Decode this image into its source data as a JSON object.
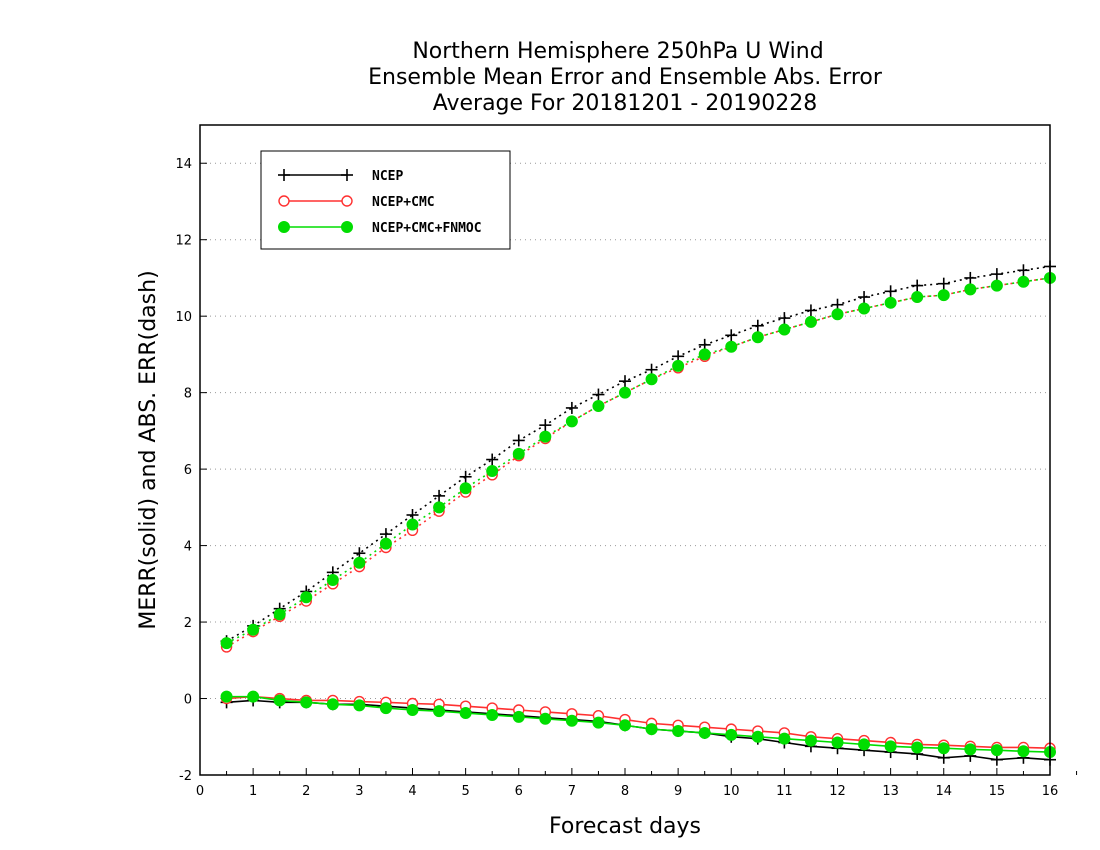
{
  "chart_data": {
    "type": "line",
    "title": [
      "Northern Hemisphere 250hPa U Wind",
      "Ensemble Mean Error and Ensemble Abs. Error",
      "Average For 20181201 - 20190228"
    ],
    "xlabel": "Forecast days",
    "ylabel": "MERR(solid) and ABS. ERR(dash)",
    "xlim": [
      0,
      16
    ],
    "ylim": [
      -2,
      15
    ],
    "x_ticks": [
      "0",
      "1",
      "2",
      "3",
      "4",
      "5",
      "6",
      "7",
      "8",
      "9",
      "10",
      "11",
      "12",
      "13",
      "14",
      "15",
      "16"
    ],
    "y_ticks": [
      "-2",
      "0",
      "2",
      "4",
      "6",
      "8",
      "10",
      "12",
      "14"
    ],
    "grid": "dotted horizontal",
    "legend_position": "top-left",
    "x": [
      0.5,
      1,
      1.5,
      2,
      2.5,
      3,
      3.5,
      4,
      4.5,
      5,
      5.5,
      6,
      6.5,
      7,
      7.5,
      8,
      8.5,
      9,
      9.5,
      10,
      10.5,
      11,
      11.5,
      12,
      12.5,
      13,
      13.5,
      14,
      14.5,
      15,
      15.5,
      16
    ],
    "series": [
      {
        "name": "NCEP",
        "color": "#000000",
        "marker": "plus",
        "abs_err": [
          1.5,
          1.9,
          2.35,
          2.8,
          3.3,
          3.8,
          4.3,
          4.8,
          5.3,
          5.8,
          6.25,
          6.75,
          7.15,
          7.6,
          7.95,
          8.3,
          8.6,
          8.95,
          9.25,
          9.5,
          9.75,
          9.95,
          10.15,
          10.3,
          10.5,
          10.65,
          10.8,
          10.85,
          11.0,
          11.1,
          11.2,
          11.3
        ],
        "mean_err": [
          -0.1,
          -0.05,
          -0.1,
          -0.1,
          -0.15,
          -0.15,
          -0.2,
          -0.25,
          -0.3,
          -0.35,
          -0.4,
          -0.45,
          -0.5,
          -0.55,
          -0.6,
          -0.7,
          -0.8,
          -0.85,
          -0.9,
          -1.0,
          -1.05,
          -1.15,
          -1.25,
          -1.3,
          -1.35,
          -1.4,
          -1.45,
          -1.55,
          -1.5,
          -1.6,
          -1.55,
          -1.6
        ]
      },
      {
        "name": "NCEP+CMC",
        "color": "#ff3030",
        "marker": "open-circle",
        "abs_err": [
          1.35,
          1.75,
          2.15,
          2.55,
          3.0,
          3.45,
          3.95,
          4.4,
          4.9,
          5.4,
          5.85,
          6.35,
          6.8,
          7.25,
          7.65,
          8.0,
          8.35,
          8.65,
          8.95,
          9.2,
          9.45,
          9.65,
          9.85,
          10.05,
          10.2,
          10.35,
          10.5,
          10.55,
          10.7,
          10.8,
          10.9,
          11.0
        ],
        "mean_err": [
          0.0,
          0.05,
          0.0,
          -0.05,
          -0.05,
          -0.08,
          -0.1,
          -0.13,
          -0.15,
          -0.2,
          -0.25,
          -0.3,
          -0.35,
          -0.4,
          -0.45,
          -0.55,
          -0.65,
          -0.7,
          -0.75,
          -0.8,
          -0.85,
          -0.9,
          -1.0,
          -1.05,
          -1.1,
          -1.15,
          -1.2,
          -1.22,
          -1.25,
          -1.28,
          -1.28,
          -1.3
        ]
      },
      {
        "name": "NCEP+CMC+FNMOC",
        "color": "#00dd00",
        "marker": "filled-circle",
        "abs_err": [
          1.45,
          1.8,
          2.2,
          2.65,
          3.1,
          3.55,
          4.05,
          4.55,
          5.0,
          5.5,
          5.95,
          6.4,
          6.85,
          7.25,
          7.65,
          8.0,
          8.35,
          8.7,
          9.0,
          9.2,
          9.45,
          9.65,
          9.85,
          10.05,
          10.2,
          10.35,
          10.5,
          10.55,
          10.7,
          10.8,
          10.9,
          11.0
        ],
        "mean_err": [
          0.05,
          0.05,
          -0.05,
          -0.1,
          -0.15,
          -0.18,
          -0.25,
          -0.3,
          -0.33,
          -0.38,
          -0.43,
          -0.48,
          -0.53,
          -0.58,
          -0.63,
          -0.7,
          -0.8,
          -0.85,
          -0.9,
          -0.95,
          -1.0,
          -1.05,
          -1.1,
          -1.15,
          -1.2,
          -1.25,
          -1.28,
          -1.3,
          -1.33,
          -1.35,
          -1.38,
          -1.4
        ]
      }
    ]
  }
}
